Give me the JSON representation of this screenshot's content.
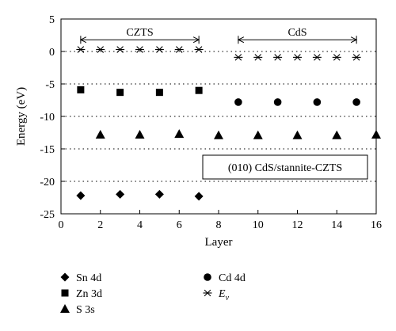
{
  "chart_data": {
    "type": "scatter",
    "xlabel": "Layer",
    "ylabel": "Energy (eV)",
    "xlim": [
      0,
      16
    ],
    "ylim": [
      -25,
      5
    ],
    "x_ticks": [
      0,
      2,
      4,
      6,
      8,
      10,
      12,
      14,
      16
    ],
    "y_ticks": [
      5,
      0,
      -5,
      -10,
      -15,
      -20,
      -25
    ],
    "grid": "horizontal dotted",
    "legend_position": "below chart",
    "series": [
      {
        "name": "Sn 4d",
        "marker": "diamond",
        "x": [
          1,
          3,
          5,
          7
        ],
        "y": [
          -22.2,
          -22.0,
          -22.0,
          -22.3
        ]
      },
      {
        "name": "Zn 3d",
        "marker": "square",
        "x": [
          1,
          3,
          5,
          7
        ],
        "y": [
          -5.9,
          -6.3,
          -6.3,
          -6.0
        ]
      },
      {
        "name": "S 3s",
        "marker": "triangle",
        "x": [
          2,
          4,
          6,
          8,
          10,
          12,
          14,
          16
        ],
        "y": [
          -12.8,
          -12.8,
          -12.7,
          -12.9,
          -12.9,
          -12.9,
          -12.9,
          -12.8
        ]
      },
      {
        "name": "Cd 4d",
        "marker": "circle",
        "x": [
          9,
          11,
          13,
          15
        ],
        "y": [
          -7.8,
          -7.8,
          -7.8,
          -7.8
        ]
      },
      {
        "name": "E",
        "name_subscript": "v",
        "marker": "asterisk",
        "x": [
          1,
          2,
          3,
          4,
          5,
          6,
          7,
          9,
          10,
          11,
          12,
          13,
          14,
          15
        ],
        "y": [
          0.3,
          0.3,
          0.3,
          0.3,
          0.3,
          0.3,
          0.3,
          -0.9,
          -0.9,
          -0.9,
          -0.9,
          -0.9,
          -0.9,
          -0.9
        ]
      }
    ],
    "annotations": [
      {
        "text": "CZTS",
        "x_from": 1,
        "x_to": 7,
        "y": 1.8
      },
      {
        "text": "CdS",
        "x_from": 9,
        "x_to": 15,
        "y": 1.8
      }
    ],
    "boxed_label": "(010) CdS/stannite-CZTS"
  }
}
